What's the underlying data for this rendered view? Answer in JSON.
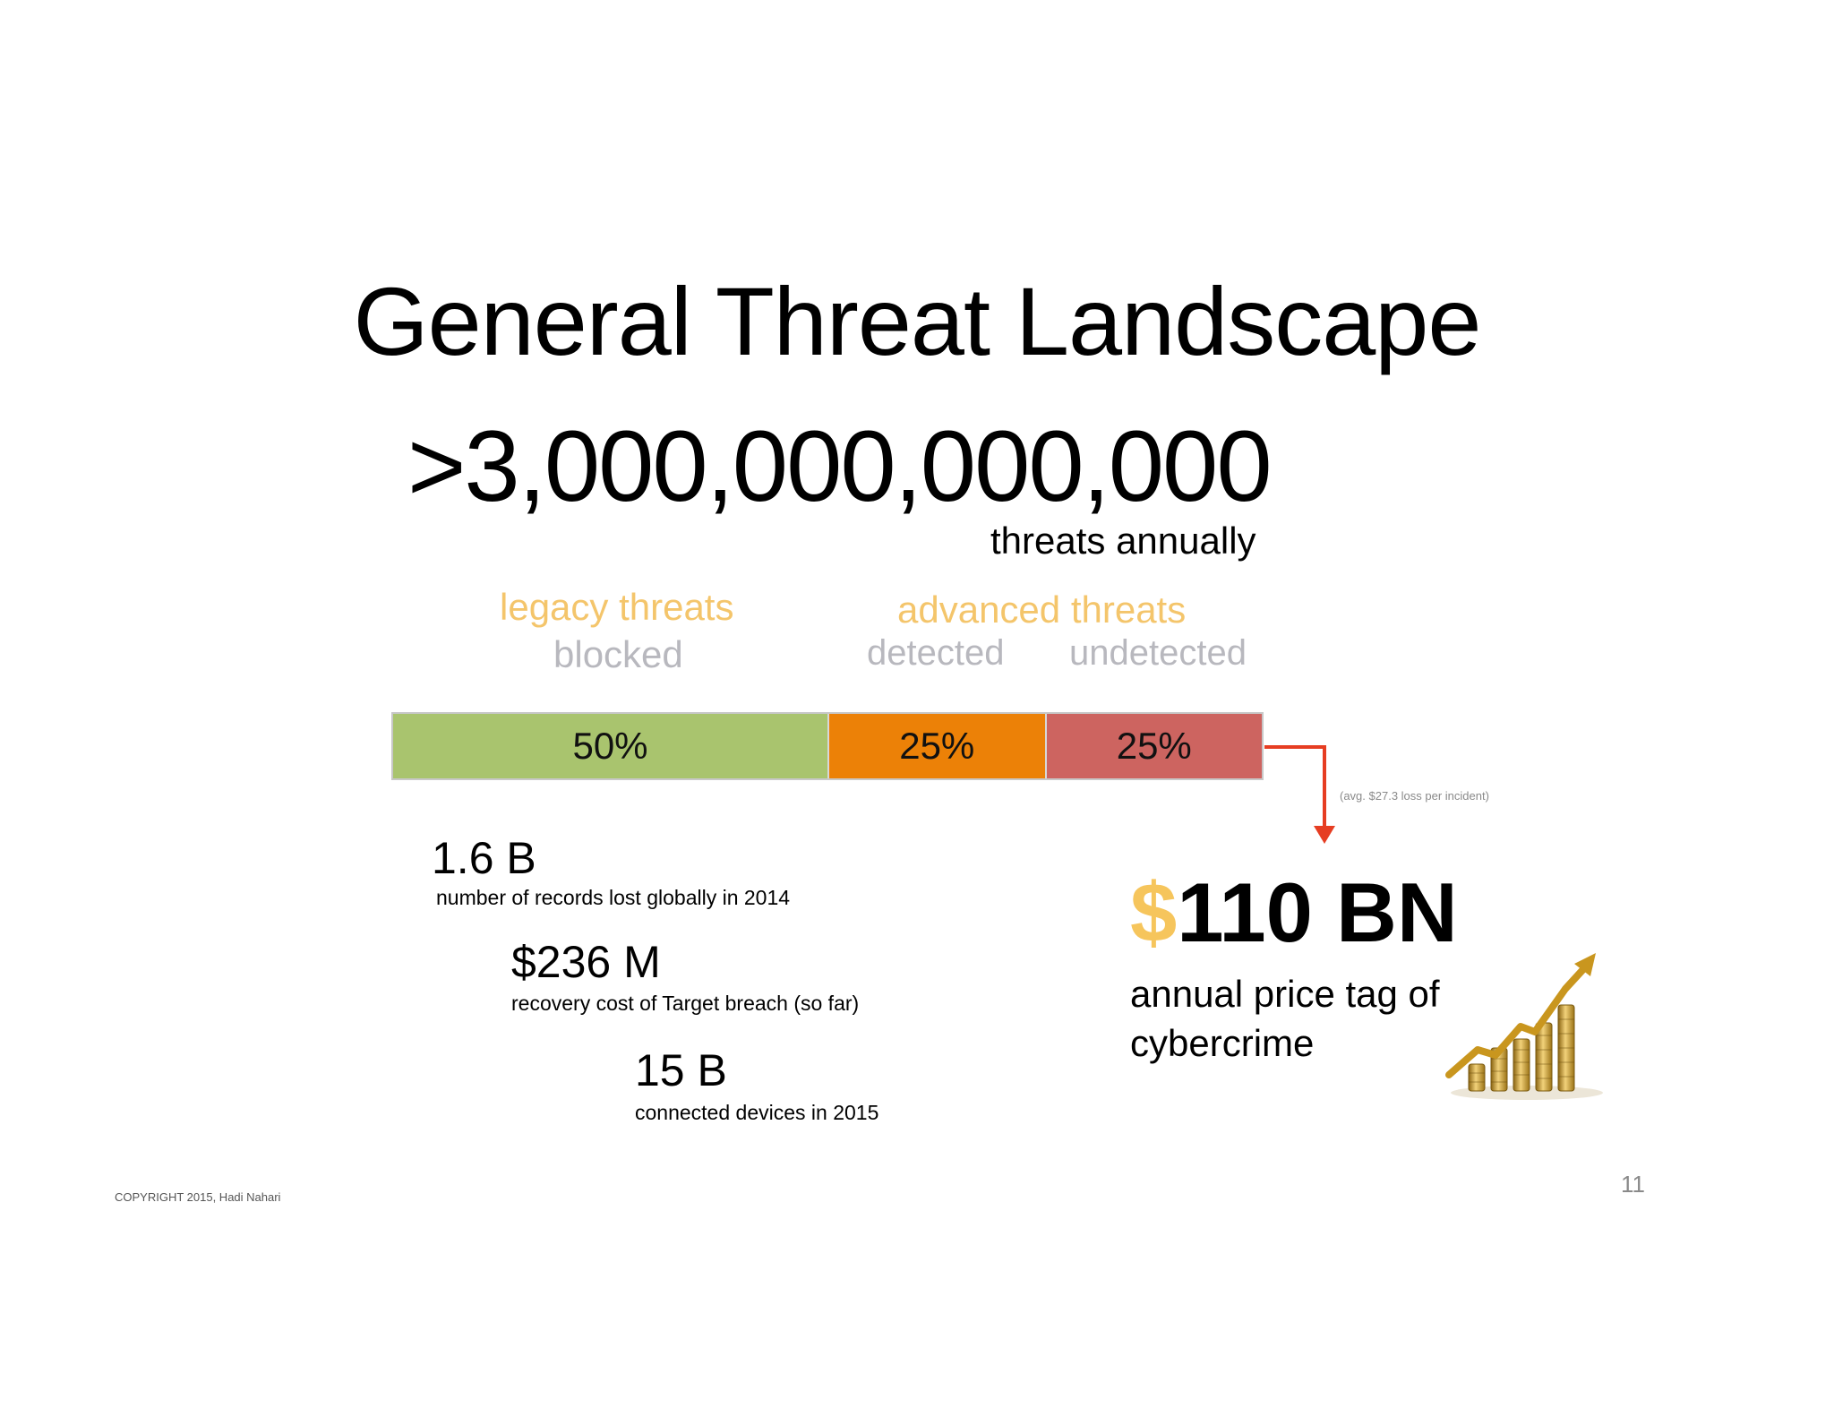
{
  "slide": {
    "title": "General Threat Landscape",
    "big_number": ">3,000,000,000,000",
    "big_number_caption": "threats annually",
    "categories": {
      "legacy": "legacy threats",
      "advanced": "advanced threats"
    },
    "statuses": {
      "blocked": "blocked",
      "detected": "detected",
      "undetected": "undetected"
    },
    "bar_segments": [
      {
        "label": "50%",
        "value": 50,
        "color": "#a9c46e"
      },
      {
        "label": "25%",
        "value": 25,
        "color": "#ec8107"
      },
      {
        "label": "25%",
        "value": 25,
        "color": "#cd6460"
      }
    ],
    "arrow_color": "#e63d22",
    "avg_note": "(avg. $27.3 loss per incident)",
    "stats": [
      {
        "value": "1.6 B",
        "desc": "number of records lost globally in 2014"
      },
      {
        "value": "$236 M",
        "desc": "recovery cost of Target breach (so far)"
      },
      {
        "value": "15 B",
        "desc": "connected devices in 2015"
      }
    ],
    "price": {
      "currency": "$",
      "amount": "110 BN",
      "desc": "annual price tag of cybercrime"
    },
    "page_number": "11",
    "copyright": "COPYRIGHT 2015, Hadi Nahari"
  },
  "colors": {
    "category": "#f4c56b",
    "status": "#b8b8be",
    "currency": "#f6c55c"
  }
}
